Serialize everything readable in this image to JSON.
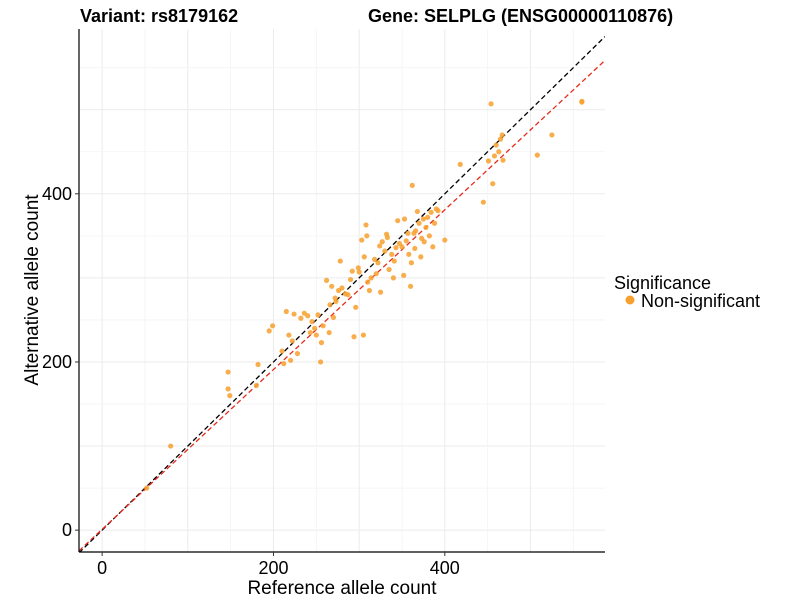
{
  "chart_data": {
    "type": "scatter",
    "title_variant": "Variant: rs8179162",
    "title_gene": "Gene: SELPLG (ENSG00000110876)",
    "xlabel": "Reference allele count",
    "ylabel": "Alternative allele count",
    "xlim": [
      -27,
      587
    ],
    "ylim": [
      -26,
      596
    ],
    "x_ticks": [
      0,
      200,
      400
    ],
    "y_ticks": [
      0,
      200,
      400
    ],
    "x_tick_labels": [
      "0",
      "200",
      "400"
    ],
    "y_tick_labels": [
      "0",
      "200",
      "400"
    ],
    "grid": true,
    "legend": {
      "title": "Significance",
      "entries": [
        {
          "label": "Non-significant",
          "color": "#f7a02d"
        }
      ]
    },
    "reference_lines": [
      {
        "name": "identity",
        "slope": 1.0,
        "intercept": 0,
        "color": "#000000",
        "dash": true
      },
      {
        "name": "fit",
        "slope": 0.95,
        "intercept": 1,
        "color": "#e8291c",
        "dash": true
      }
    ],
    "series": [
      {
        "name": "Non-significant",
        "color": "#f7a02d",
        "points": [
          [
            52,
            50
          ],
          [
            80,
            100
          ],
          [
            147,
            188
          ],
          [
            147,
            168
          ],
          [
            149,
            160
          ],
          [
            180,
            172
          ],
          [
            182,
            197
          ],
          [
            195,
            237
          ],
          [
            199,
            243
          ],
          [
            210,
            213
          ],
          [
            212,
            198
          ],
          [
            215,
            260
          ],
          [
            218,
            232
          ],
          [
            220,
            202
          ],
          [
            222,
            225
          ],
          [
            224,
            257
          ],
          [
            228,
            210
          ],
          [
            232,
            252
          ],
          [
            236,
            258
          ],
          [
            240,
            255
          ],
          [
            243,
            235
          ],
          [
            245,
            248
          ],
          [
            248,
            240
          ],
          [
            250,
            232
          ],
          [
            252,
            256
          ],
          [
            255,
            200
          ],
          [
            256,
            223
          ],
          [
            258,
            243
          ],
          [
            262,
            297
          ],
          [
            265,
            235
          ],
          [
            266,
            268
          ],
          [
            268,
            290
          ],
          [
            270,
            253
          ],
          [
            272,
            276
          ],
          [
            273,
            272
          ],
          [
            276,
            285
          ],
          [
            278,
            320
          ],
          [
            280,
            288
          ],
          [
            284,
            281
          ],
          [
            287,
            280
          ],
          [
            290,
            298
          ],
          [
            292,
            308
          ],
          [
            294,
            230
          ],
          [
            296,
            265
          ],
          [
            299,
            312
          ],
          [
            300,
            307
          ],
          [
            303,
            345
          ],
          [
            305,
            232
          ],
          [
            306,
            325
          ],
          [
            308,
            363
          ],
          [
            309,
            350
          ],
          [
            310,
            295
          ],
          [
            312,
            285
          ],
          [
            314,
            300
          ],
          [
            318,
            322
          ],
          [
            320,
            305
          ],
          [
            322,
            318
          ],
          [
            324,
            338
          ],
          [
            325,
            283
          ],
          [
            327,
            343
          ],
          [
            330,
            332
          ],
          [
            332,
            352
          ],
          [
            333,
            348
          ],
          [
            335,
            310
          ],
          [
            338,
            328
          ],
          [
            340,
            300
          ],
          [
            341,
            320
          ],
          [
            343,
            336
          ],
          [
            345,
            368
          ],
          [
            347,
            341
          ],
          [
            350,
            337
          ],
          [
            352,
            303
          ],
          [
            353,
            370
          ],
          [
            355,
            344
          ],
          [
            357,
            353
          ],
          [
            358,
            328
          ],
          [
            360,
            290
          ],
          [
            361,
            318
          ],
          [
            362,
            410
          ],
          [
            364,
            353
          ],
          [
            365,
            335
          ],
          [
            366,
            356
          ],
          [
            368,
            379
          ],
          [
            370,
            365
          ],
          [
            372,
            325
          ],
          [
            373,
            347
          ],
          [
            375,
            370
          ],
          [
            376,
            343
          ],
          [
            378,
            360
          ],
          [
            380,
            372
          ],
          [
            382,
            350
          ],
          [
            384,
            378
          ],
          [
            386,
            337
          ],
          [
            388,
            365
          ],
          [
            390,
            382
          ],
          [
            392,
            380
          ],
          [
            400,
            345
          ],
          [
            418,
            435
          ],
          [
            445,
            390
          ],
          [
            451,
            439
          ],
          [
            454,
            507
          ],
          [
            456,
            412
          ],
          [
            458,
            445
          ],
          [
            460,
            458
          ],
          [
            463,
            450
          ],
          [
            465,
            465
          ],
          [
            467,
            470
          ],
          [
            468,
            440
          ],
          [
            508,
            446
          ],
          [
            525,
            470
          ],
          [
            560,
            510
          ],
          [
            560,
            509
          ]
        ]
      }
    ]
  }
}
